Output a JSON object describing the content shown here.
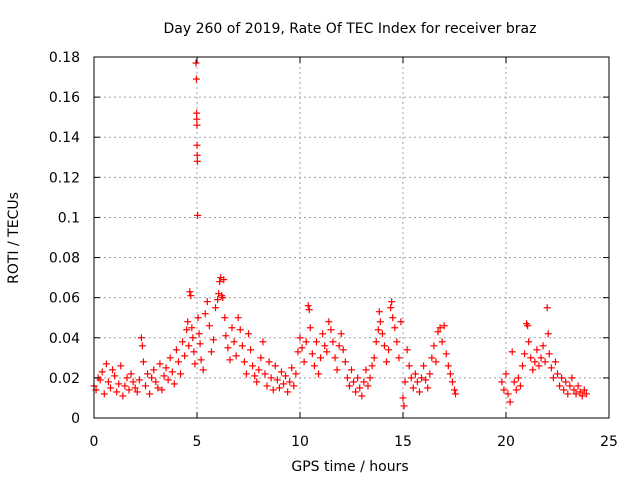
{
  "chart_data": {
    "type": "scatter",
    "title": "Day 260 of 2019, Rate Of TEC Index for receiver braz",
    "xlabel": "GPS time / hours",
    "ylabel": "ROTI / TECUs",
    "xlim": [
      0,
      25
    ],
    "ylim": [
      0,
      0.18
    ],
    "xticks": [
      0,
      5,
      10,
      15,
      20,
      25
    ],
    "yticks": [
      0,
      0.02,
      0.04,
      0.06,
      0.08,
      0.1,
      0.12,
      0.14,
      0.16,
      0.18
    ],
    "xtick_labels": [
      "0",
      "5",
      "10",
      "15",
      "20",
      "25"
    ],
    "ytick_labels": [
      "0",
      "0.02",
      "0.04",
      "0.06",
      "0.08",
      "0.1",
      "0.12",
      "0.14",
      "0.16",
      "0.18"
    ],
    "grid": true,
    "marker": "+",
    "color": "#ff0000",
    "series": [
      {
        "points": [
          [
            0.0,
            0.016
          ],
          [
            0.1,
            0.014
          ],
          [
            0.2,
            0.02
          ],
          [
            0.3,
            0.019
          ],
          [
            0.4,
            0.023
          ],
          [
            0.5,
            0.012
          ],
          [
            0.6,
            0.027
          ],
          [
            0.7,
            0.018
          ],
          [
            0.8,
            0.015
          ],
          [
            0.9,
            0.024
          ],
          [
            1.0,
            0.021
          ],
          [
            1.1,
            0.013
          ],
          [
            1.2,
            0.017
          ],
          [
            1.3,
            0.026
          ],
          [
            1.4,
            0.011
          ],
          [
            1.5,
            0.016
          ],
          [
            1.6,
            0.02
          ],
          [
            1.7,
            0.014
          ],
          [
            1.8,
            0.022
          ],
          [
            1.9,
            0.018
          ],
          [
            2.0,
            0.015
          ],
          [
            2.1,
            0.013
          ],
          [
            2.2,
            0.019
          ],
          [
            2.3,
            0.04
          ],
          [
            2.35,
            0.036
          ],
          [
            2.4,
            0.028
          ],
          [
            2.5,
            0.016
          ],
          [
            2.6,
            0.022
          ],
          [
            2.7,
            0.012
          ],
          [
            2.8,
            0.02
          ],
          [
            2.9,
            0.024
          ],
          [
            3.0,
            0.018
          ],
          [
            3.1,
            0.015
          ],
          [
            3.2,
            0.027
          ],
          [
            3.3,
            0.014
          ],
          [
            3.4,
            0.021
          ],
          [
            3.5,
            0.025
          ],
          [
            3.6,
            0.019
          ],
          [
            3.7,
            0.03
          ],
          [
            3.8,
            0.023
          ],
          [
            3.9,
            0.017
          ],
          [
            4.0,
            0.034
          ],
          [
            4.1,
            0.028
          ],
          [
            4.2,
            0.022
          ],
          [
            4.3,
            0.038
          ],
          [
            4.4,
            0.031
          ],
          [
            4.5,
            0.044
          ],
          [
            4.55,
            0.048
          ],
          [
            4.6,
            0.036
          ],
          [
            4.65,
            0.063
          ],
          [
            4.7,
            0.061
          ],
          [
            4.75,
            0.045
          ],
          [
            4.8,
            0.04
          ],
          [
            4.85,
            0.033
          ],
          [
            4.9,
            0.027
          ],
          [
            4.95,
            0.177
          ],
          [
            4.97,
            0.169
          ],
          [
            4.98,
            0.152
          ],
          [
            4.99,
            0.149
          ],
          [
            5.0,
            0.146
          ],
          [
            5.0,
            0.136
          ],
          [
            5.01,
            0.131
          ],
          [
            5.02,
            0.128
          ],
          [
            5.03,
            0.101
          ],
          [
            5.05,
            0.05
          ],
          [
            5.1,
            0.042
          ],
          [
            5.15,
            0.037
          ],
          [
            5.2,
            0.029
          ],
          [
            5.3,
            0.024
          ],
          [
            5.4,
            0.052
          ],
          [
            5.5,
            0.058
          ],
          [
            5.6,
            0.046
          ],
          [
            5.7,
            0.033
          ],
          [
            5.8,
            0.039
          ],
          [
            5.9,
            0.055
          ],
          [
            6.0,
            0.059
          ],
          [
            6.05,
            0.062
          ],
          [
            6.1,
            0.068
          ],
          [
            6.15,
            0.07
          ],
          [
            6.2,
            0.061
          ],
          [
            6.25,
            0.06
          ],
          [
            6.3,
            0.069
          ],
          [
            6.35,
            0.05
          ],
          [
            6.4,
            0.041
          ],
          [
            6.5,
            0.035
          ],
          [
            6.6,
            0.029
          ],
          [
            6.7,
            0.045
          ],
          [
            6.8,
            0.038
          ],
          [
            6.9,
            0.031
          ],
          [
            7.0,
            0.05
          ],
          [
            7.1,
            0.044
          ],
          [
            7.2,
            0.036
          ],
          [
            7.3,
            0.028
          ],
          [
            7.4,
            0.022
          ],
          [
            7.5,
            0.042
          ],
          [
            7.6,
            0.034
          ],
          [
            7.7,
            0.026
          ],
          [
            7.8,
            0.021
          ],
          [
            7.9,
            0.018
          ],
          [
            8.0,
            0.024
          ],
          [
            8.1,
            0.03
          ],
          [
            8.2,
            0.038
          ],
          [
            8.3,
            0.022
          ],
          [
            8.4,
            0.016
          ],
          [
            8.5,
            0.028
          ],
          [
            8.6,
            0.02
          ],
          [
            8.7,
            0.014
          ],
          [
            8.8,
            0.026
          ],
          [
            8.9,
            0.019
          ],
          [
            9.0,
            0.015
          ],
          [
            9.1,
            0.023
          ],
          [
            9.2,
            0.017
          ],
          [
            9.3,
            0.021
          ],
          [
            9.4,
            0.013
          ],
          [
            9.5,
            0.018
          ],
          [
            9.6,
            0.025
          ],
          [
            9.7,
            0.016
          ],
          [
            9.8,
            0.022
          ],
          [
            9.9,
            0.033
          ],
          [
            10.0,
            0.04
          ],
          [
            10.1,
            0.035
          ],
          [
            10.2,
            0.028
          ],
          [
            10.3,
            0.038
          ],
          [
            10.4,
            0.056
          ],
          [
            10.45,
            0.054
          ],
          [
            10.5,
            0.045
          ],
          [
            10.6,
            0.032
          ],
          [
            10.7,
            0.026
          ],
          [
            10.8,
            0.038
          ],
          [
            10.9,
            0.022
          ],
          [
            11.0,
            0.03
          ],
          [
            11.1,
            0.042
          ],
          [
            11.2,
            0.036
          ],
          [
            11.3,
            0.033
          ],
          [
            11.4,
            0.048
          ],
          [
            11.5,
            0.044
          ],
          [
            11.6,
            0.038
          ],
          [
            11.7,
            0.03
          ],
          [
            11.8,
            0.024
          ],
          [
            11.9,
            0.036
          ],
          [
            12.0,
            0.042
          ],
          [
            12.1,
            0.034
          ],
          [
            12.2,
            0.028
          ],
          [
            12.3,
            0.02
          ],
          [
            12.4,
            0.016
          ],
          [
            12.5,
            0.024
          ],
          [
            12.6,
            0.018
          ],
          [
            12.7,
            0.013
          ],
          [
            12.8,
            0.02
          ],
          [
            12.9,
            0.015
          ],
          [
            13.0,
            0.011
          ],
          [
            13.1,
            0.018
          ],
          [
            13.2,
            0.024
          ],
          [
            13.3,
            0.016
          ],
          [
            13.4,
            0.02
          ],
          [
            13.5,
            0.026
          ],
          [
            13.6,
            0.03
          ],
          [
            13.7,
            0.038
          ],
          [
            13.8,
            0.044
          ],
          [
            13.85,
            0.053
          ],
          [
            13.9,
            0.048
          ],
          [
            14.0,
            0.042
          ],
          [
            14.1,
            0.036
          ],
          [
            14.2,
            0.028
          ],
          [
            14.3,
            0.034
          ],
          [
            14.4,
            0.055
          ],
          [
            14.45,
            0.058
          ],
          [
            14.5,
            0.05
          ],
          [
            14.6,
            0.045
          ],
          [
            14.7,
            0.038
          ],
          [
            14.8,
            0.03
          ],
          [
            14.9,
            0.048
          ],
          [
            15.0,
            0.01
          ],
          [
            15.05,
            0.006
          ],
          [
            15.1,
            0.018
          ],
          [
            15.2,
            0.034
          ],
          [
            15.3,
            0.026
          ],
          [
            15.4,
            0.02
          ],
          [
            15.5,
            0.015
          ],
          [
            15.6,
            0.022
          ],
          [
            15.7,
            0.018
          ],
          [
            15.8,
            0.013
          ],
          [
            15.9,
            0.02
          ],
          [
            16.0,
            0.026
          ],
          [
            16.1,
            0.019
          ],
          [
            16.2,
            0.015
          ],
          [
            16.3,
            0.022
          ],
          [
            16.4,
            0.03
          ],
          [
            16.5,
            0.036
          ],
          [
            16.6,
            0.028
          ],
          [
            16.7,
            0.043
          ],
          [
            16.8,
            0.045
          ],
          [
            16.9,
            0.038
          ],
          [
            17.0,
            0.046
          ],
          [
            17.1,
            0.032
          ],
          [
            17.2,
            0.026
          ],
          [
            17.3,
            0.022
          ],
          [
            17.4,
            0.018
          ],
          [
            17.5,
            0.014
          ],
          [
            17.55,
            0.012
          ],
          [
            19.8,
            0.018
          ],
          [
            19.9,
            0.014
          ],
          [
            20.0,
            0.022
          ],
          [
            20.1,
            0.012
          ],
          [
            20.2,
            0.008
          ],
          [
            20.3,
            0.033
          ],
          [
            20.4,
            0.018
          ],
          [
            20.5,
            0.014
          ],
          [
            20.6,
            0.02
          ],
          [
            20.7,
            0.016
          ],
          [
            20.8,
            0.026
          ],
          [
            20.9,
            0.032
          ],
          [
            21.0,
            0.047
          ],
          [
            21.05,
            0.046
          ],
          [
            21.1,
            0.038
          ],
          [
            21.2,
            0.03
          ],
          [
            21.3,
            0.024
          ],
          [
            21.4,
            0.028
          ],
          [
            21.5,
            0.034
          ],
          [
            21.6,
            0.026
          ],
          [
            21.7,
            0.03
          ],
          [
            21.8,
            0.036
          ],
          [
            21.9,
            0.028
          ],
          [
            22.0,
            0.055
          ],
          [
            22.05,
            0.042
          ],
          [
            22.1,
            0.032
          ],
          [
            22.2,
            0.025
          ],
          [
            22.3,
            0.02
          ],
          [
            22.4,
            0.028
          ],
          [
            22.5,
            0.022
          ],
          [
            22.6,
            0.016
          ],
          [
            22.7,
            0.02
          ],
          [
            22.8,
            0.014
          ],
          [
            22.9,
            0.018
          ],
          [
            23.0,
            0.012
          ],
          [
            23.1,
            0.016
          ],
          [
            23.2,
            0.02
          ],
          [
            23.3,
            0.014
          ],
          [
            23.4,
            0.012
          ],
          [
            23.5,
            0.016
          ],
          [
            23.6,
            0.013
          ],
          [
            23.7,
            0.011
          ],
          [
            23.8,
            0.014
          ],
          [
            23.9,
            0.012
          ]
        ]
      }
    ]
  }
}
